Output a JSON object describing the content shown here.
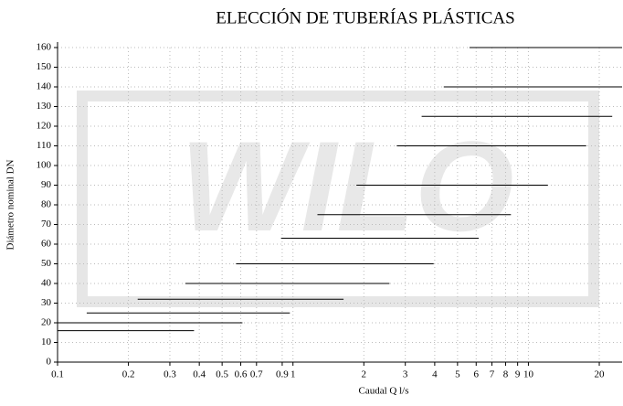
{
  "chart_data": {
    "type": "segments",
    "title": "ELECCIÓN DE TUBERÍAS PLÁSTICAS",
    "watermark": "WILO",
    "x_label": "Caudal Q l/s",
    "y_label": "Diámetro nominal DN",
    "x_scale": "log",
    "grid": true,
    "color": "#000000",
    "xlim": [
      0.1,
      25
    ],
    "ylim": [
      0,
      160
    ],
    "xticks": [
      0.1,
      0.2,
      0.3,
      0.4,
      0.5,
      0.6,
      0.7,
      0.9,
      1,
      2,
      3,
      4,
      5,
      6,
      7,
      8,
      9,
      10,
      20
    ],
    "yticks": [
      0,
      10,
      20,
      30,
      40,
      50,
      60,
      70,
      80,
      90,
      100,
      110,
      120,
      130,
      140,
      150,
      160
    ],
    "segments": [
      {
        "y": 16,
        "x": [
          0.1,
          0.38
        ]
      },
      {
        "y": 20,
        "x": [
          0.1,
          0.61
        ]
      },
      {
        "y": 25,
        "x": [
          0.133,
          0.97
        ]
      },
      {
        "y": 32,
        "x": [
          0.219,
          1.64
        ]
      },
      {
        "y": 40,
        "x": [
          0.349,
          2.57
        ]
      },
      {
        "y": 50,
        "x": [
          0.573,
          3.96
        ]
      },
      {
        "y": 63,
        "x": [
          0.89,
          6.15
        ]
      },
      {
        "y": 75,
        "x": [
          1.27,
          8.43
        ]
      },
      {
        "y": 90,
        "x": [
          1.86,
          12.1
        ]
      },
      {
        "y": 110,
        "x": [
          2.76,
          17.6
        ]
      },
      {
        "y": 125,
        "x": [
          3.52,
          22.7
        ]
      },
      {
        "y": 140,
        "x": [
          4.37,
          25
        ]
      },
      {
        "y": 160,
        "x": [
          5.62,
          25
        ]
      }
    ]
  }
}
